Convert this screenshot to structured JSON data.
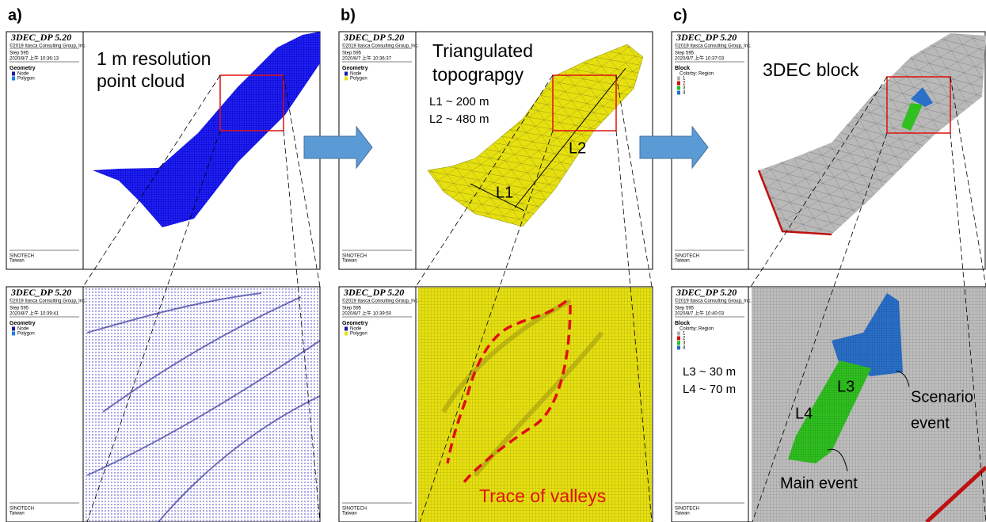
{
  "panels": [
    {
      "label": "a)",
      "top": {
        "sidebar": {
          "title": "3DEC_DP 5.20",
          "copyright": "©2019 Itasca Consulting Group, Inc.",
          "step": "Step 595",
          "time": "2020/8/7 上午 10:36:13",
          "legend_title": "Geometry",
          "legend_items": [
            {
              "label": "Node",
              "color": "#1a1aa0"
            },
            {
              "label": "Polygon",
              "color": "#1a7fe0"
            }
          ],
          "company": "SINOTECH",
          "location": "Taiwan"
        },
        "annotation": [
          "1 m resolution",
          "point cloud"
        ]
      },
      "bottom": {
        "sidebar": {
          "title": "3DEC_DP 5.20",
          "copyright": "©2019 Itasca Consulting Group, Inc.",
          "step": "Step 595",
          "time": "2020/8/7 上午 10:39:41",
          "legend_title": "Geometry",
          "legend_items": [
            {
              "label": "Node",
              "color": "#1a1aa0"
            },
            {
              "label": "Polygon",
              "color": "#1a7fe0"
            }
          ],
          "company": "SINOTECH",
          "location": "Taiwan"
        }
      }
    },
    {
      "label": "b)",
      "top": {
        "sidebar": {
          "title": "3DEC_DP 5.20",
          "copyright": "©2019 Itasca Consulting Group, Inc.",
          "step": "Step 595",
          "time": "2020/8/7 上午 10:36:37",
          "legend_title": "Geometry",
          "legend_items": [
            {
              "label": "Node",
              "color": "#1a1aa0"
            },
            {
              "label": "Polygon",
              "color": "#e8e010"
            }
          ],
          "company": "SINOTECH",
          "location": "Taiwan"
        },
        "annotation": [
          "Triangulated",
          "topograpgy"
        ],
        "lengths": [
          "L1 ~ 200 m",
          "L2 ~ 480 m"
        ],
        "markers": [
          "L1",
          "L2"
        ]
      },
      "bottom": {
        "sidebar": {
          "title": "3DEC_DP 5.20",
          "copyright": "©2019 Itasca Consulting Group, Inc.",
          "step": "Step 595",
          "time": "2020/8/7 上午 10:39:50",
          "legend_title": "Geometry",
          "legend_items": [
            {
              "label": "Node",
              "color": "#1a1aa0"
            },
            {
              "label": "Polygon",
              "color": "#e8e010"
            }
          ],
          "company": "SINOTECH",
          "location": "Taiwan"
        },
        "annotation": "Trace of valleys"
      }
    },
    {
      "label": "c)",
      "top": {
        "sidebar": {
          "title": "3DEC_DP 5.20",
          "copyright": "©2019 Itasca Consulting Group, Inc.",
          "step": "Step 595",
          "time": "2020/8/7 上午 10:37:03",
          "legend_title": "Block",
          "legend_subtitle": "Colorby: Region",
          "legend_items": [
            {
              "label": "1",
              "color": "#b0b0b0"
            },
            {
              "label": "2",
              "color": "#d01010"
            },
            {
              "label": "3",
              "color": "#20c020"
            },
            {
              "label": "4",
              "color": "#2070d0"
            }
          ],
          "company": "SINOTECH",
          "location": "Taiwan"
        },
        "annotation": "3DEC block"
      },
      "bottom": {
        "sidebar": {
          "title": "3DEC_DP 5.20",
          "copyright": "©2019 Itasca Consulting Group, Inc.",
          "step": "Step 595",
          "time": "2020/8/7 上午 10:40:03",
          "legend_title": "Block",
          "legend_subtitle": "Colorby: Region",
          "legend_items": [
            {
              "label": "1",
              "color": "#b0b0b0"
            },
            {
              "label": "2",
              "color": "#d01010"
            },
            {
              "label": "3",
              "color": "#20c020"
            },
            {
              "label": "4",
              "color": "#2070d0"
            }
          ],
          "company": "SINOTECH",
          "location": "Taiwan"
        },
        "lengths": [
          "L3 ~ 30 m",
          "L4 ~ 70 m"
        ],
        "markers": [
          "L3",
          "L4"
        ],
        "events": {
          "scenario": [
            "Scenario",
            "event"
          ],
          "main": "Main event"
        }
      }
    }
  ]
}
